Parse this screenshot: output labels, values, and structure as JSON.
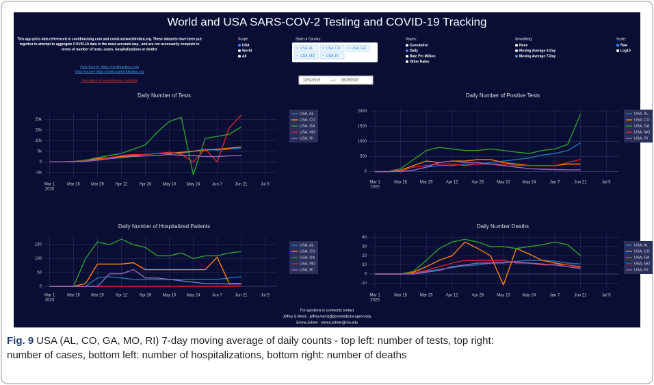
{
  "header": {
    "title": "World and USA SARS-COV-2 Testing and COVID-19 Tracking",
    "description": [
      "This app plots data referenced in covidtracking.com and covid.ourworldindata.org. These datasets have been put",
      "together to attempt to aggregate COVID-19 data in the most accurate way , and are not necessarily complete in",
      "terms of number of tests, cases, hospitalizations or deaths"
    ],
    "links": [
      "Data Source: https://covidtracking.com",
      "Data Source: https://covid.ourworldindata.org"
    ],
    "variables_link": "Description of epidemiology variables"
  },
  "controls": {
    "scope": {
      "label": "Scope:",
      "options": [
        "USA",
        "World",
        "All"
      ],
      "selected": "USA"
    },
    "state": {
      "label": "State or Country:",
      "chips": [
        "USA, AL",
        "USA, CO",
        "USA, GA",
        "USA, MO",
        "USA, RI"
      ],
      "remove": "×"
    },
    "values": {
      "label": "Values:",
      "options": [
        "Cumulative",
        "Daily",
        "Rate Per Million",
        "Other Rates"
      ],
      "selected": "Daily"
    },
    "smoothing": {
      "label": "Smoothing:",
      "options": [
        "None",
        "Moving Average 3-Day",
        "Moving Average 7-Day"
      ],
      "selected": "Moving Average 7-Day"
    },
    "scale": {
      "label": "Scale:",
      "options": [
        "Raw",
        "Log10"
      ],
      "selected": "Raw"
    },
    "date_start": "12/31/2019",
    "date_arrow": "-->",
    "date_end": "06/29/2020"
  },
  "chart_data": [
    {
      "type": "line",
      "title": "Daily Number of Tests",
      "x": [
        "2020-03-01",
        "2020-03-08",
        "2020-03-15",
        "2020-03-22",
        "2020-03-29",
        "2020-04-05",
        "2020-04-12",
        "2020-04-19",
        "2020-04-26",
        "2020-05-03",
        "2020-05-10",
        "2020-05-17",
        "2020-05-24",
        "2020-05-31",
        "2020-06-07",
        "2020-06-14",
        "2020-06-21"
      ],
      "xlim": [
        "2020-02-27",
        "2020-07-12"
      ],
      "xticks": [
        {
          "value": "2020-03-01",
          "label": "Mar 1"
        },
        {
          "value": "2020-03-15",
          "label": "Mar 15"
        },
        {
          "value": "2020-03-29",
          "label": "Mar 29"
        },
        {
          "value": "2020-04-12",
          "label": "Apr 12"
        },
        {
          "value": "2020-04-26",
          "label": "Apr 26"
        },
        {
          "value": "2020-05-10",
          "label": "May 10"
        },
        {
          "value": "2020-05-24",
          "label": "May 24"
        },
        {
          "value": "2020-06-07",
          "label": "Jun 7"
        },
        {
          "value": "2020-06-21",
          "label": "Jun 21"
        },
        {
          "value": "2020-07-05",
          "label": "Jul 5"
        }
      ],
      "year_label": "2020",
      "ylim": [
        -7000,
        23000
      ],
      "yticks": [
        {
          "value": -5000,
          "label": "−5k"
        },
        0,
        {
          "value": 5000,
          "label": "5k"
        },
        {
          "value": 10000,
          "label": "10k"
        },
        {
          "value": 15000,
          "label": "15k"
        },
        {
          "value": 20000,
          "label": "20k"
        }
      ],
      "grid": true,
      "series": [
        {
          "name": "USA, AL",
          "color": "#1f77b4",
          "values": [
            0,
            0,
            100,
            500,
            1500,
            2000,
            2500,
            3000,
            3500,
            4000,
            4500,
            4000,
            5000,
            6000,
            5500,
            6000,
            6500
          ]
        },
        {
          "name": "USA, CO",
          "color": "#ff7f0e",
          "values": [
            0,
            0,
            200,
            800,
            1500,
            2000,
            2500,
            3000,
            3500,
            4000,
            4000,
            4500,
            5000,
            5500,
            6000,
            6500,
            7000
          ]
        },
        {
          "name": "USA, GA",
          "color": "#2ca02c",
          "values": [
            0,
            0,
            200,
            800,
            2000,
            3000,
            4000,
            6000,
            8000,
            14000,
            19000,
            21000,
            -6000,
            11000,
            12000,
            13000,
            16500
          ]
        },
        {
          "name": "USA, MO",
          "color": "#d62728",
          "values": [
            0,
            0,
            100,
            500,
            1000,
            2000,
            3000,
            3500,
            3500,
            4000,
            4500,
            3500,
            0,
            6000,
            0,
            16000,
            22000
          ]
        },
        {
          "name": "USA, RI",
          "color": "#9467bd",
          "values": [
            0,
            0,
            100,
            300,
            800,
            1500,
            2000,
            2500,
            2800,
            3000,
            3500,
            3000,
            3000,
            2500,
            2500,
            2800,
            3000
          ]
        }
      ]
    },
    {
      "type": "line",
      "title": "Daily Number of Positive Tests",
      "x": [
        "2020-03-01",
        "2020-03-08",
        "2020-03-15",
        "2020-03-22",
        "2020-03-29",
        "2020-04-05",
        "2020-04-12",
        "2020-04-19",
        "2020-04-26",
        "2020-05-03",
        "2020-05-10",
        "2020-05-17",
        "2020-05-24",
        "2020-05-31",
        "2020-06-07",
        "2020-06-14",
        "2020-06-21"
      ],
      "xlim": [
        "2020-02-27",
        "2020-07-12"
      ],
      "xticks": [
        {
          "value": "2020-03-01",
          "label": "Mar 1"
        },
        {
          "value": "2020-03-15",
          "label": "Mar 15"
        },
        {
          "value": "2020-03-29",
          "label": "Mar 29"
        },
        {
          "value": "2020-04-12",
          "label": "Apr 12"
        },
        {
          "value": "2020-04-26",
          "label": "Apr 26"
        },
        {
          "value": "2020-05-10",
          "label": "May 10"
        },
        {
          "value": "2020-05-24",
          "label": "May 24"
        },
        {
          "value": "2020-06-07",
          "label": "Jun 7"
        },
        {
          "value": "2020-06-21",
          "label": "Jun 21"
        },
        {
          "value": "2020-07-05",
          "label": "Jul 5"
        }
      ],
      "year_label": "2020",
      "ylim": [
        -100,
        2050
      ],
      "yticks": [
        0,
        500,
        1000,
        1500,
        2000
      ],
      "grid": true,
      "series": [
        {
          "name": "USA, AL",
          "color": "#1f77b4",
          "values": [
            0,
            0,
            5,
            50,
            150,
            200,
            200,
            250,
            250,
            300,
            350,
            400,
            450,
            550,
            600,
            700,
            950
          ]
        },
        {
          "name": "USA, CO",
          "color": "#ff7f0e",
          "values": [
            0,
            0,
            50,
            200,
            350,
            300,
            350,
            350,
            400,
            400,
            300,
            250,
            200,
            200,
            200,
            250,
            250
          ]
        },
        {
          "name": "USA, GA",
          "color": "#2ca02c",
          "values": [
            0,
            0,
            100,
            400,
            700,
            800,
            750,
            700,
            700,
            750,
            700,
            650,
            600,
            700,
            750,
            900,
            1900
          ]
        },
        {
          "name": "USA, MO",
          "color": "#d62728",
          "values": [
            0,
            0,
            30,
            150,
            200,
            250,
            250,
            200,
            250,
            250,
            250,
            200,
            200,
            200,
            200,
            300,
            400
          ]
        },
        {
          "name": "USA, RI",
          "color": "#9467bd",
          "values": [
            0,
            0,
            10,
            50,
            150,
            300,
            350,
            300,
            300,
            250,
            200,
            150,
            100,
            80,
            70,
            60,
            60
          ]
        }
      ]
    },
    {
      "type": "line",
      "title": "Daily Number of Hospitalized Patients",
      "x": [
        "2020-03-01",
        "2020-03-08",
        "2020-03-15",
        "2020-03-22",
        "2020-03-29",
        "2020-04-05",
        "2020-04-12",
        "2020-04-19",
        "2020-04-26",
        "2020-05-03",
        "2020-05-10",
        "2020-05-17",
        "2020-05-24",
        "2020-05-31",
        "2020-06-07",
        "2020-06-14",
        "2020-06-21"
      ],
      "xlim": [
        "2020-02-27",
        "2020-07-12"
      ],
      "xticks": [
        {
          "value": "2020-03-01",
          "label": "Mar 1"
        },
        {
          "value": "2020-03-15",
          "label": "Mar 15"
        },
        {
          "value": "2020-03-29",
          "label": "Mar 29"
        },
        {
          "value": "2020-04-12",
          "label": "Apr 12"
        },
        {
          "value": "2020-04-26",
          "label": "Apr 26"
        },
        {
          "value": "2020-05-10",
          "label": "May 10"
        },
        {
          "value": "2020-05-24",
          "label": "May 24"
        },
        {
          "value": "2020-06-07",
          "label": "Jun 7"
        },
        {
          "value": "2020-06-21",
          "label": "Jun 21"
        },
        {
          "value": "2020-07-05",
          "label": "Jul 5"
        }
      ],
      "year_label": "2020",
      "ylim": [
        -5,
        180
      ],
      "yticks": [
        0,
        50,
        100,
        150
      ],
      "grid": true,
      "series": [
        {
          "name": "USA, AL",
          "color": "#1f77b4",
          "values": [
            0,
            0,
            0,
            0,
            30,
            35,
            30,
            25,
            25,
            25,
            25,
            25,
            25,
            25,
            25,
            30,
            35
          ]
        },
        {
          "name": "USA, CO",
          "color": "#ff7f0e",
          "values": [
            0,
            0,
            0,
            10,
            80,
            80,
            80,
            85,
            60,
            60,
            60,
            60,
            60,
            60,
            105,
            10,
            10
          ]
        },
        {
          "name": "USA, GA",
          "color": "#2ca02c",
          "values": [
            0,
            0,
            0,
            100,
            160,
            150,
            170,
            150,
            140,
            110,
            110,
            120,
            100,
            110,
            110,
            120,
            125
          ]
        },
        {
          "name": "USA, MO",
          "color": "#d62728",
          "values": [
            0,
            0,
            0,
            0,
            0,
            0,
            0,
            0,
            0,
            0,
            0,
            0,
            0,
            0,
            0,
            0,
            0
          ]
        },
        {
          "name": "USA, RI",
          "color": "#9467bd",
          "values": [
            0,
            0,
            0,
            0,
            0,
            45,
            45,
            60,
            30,
            30,
            25,
            20,
            15,
            10,
            10,
            8,
            8
          ]
        }
      ]
    },
    {
      "type": "line",
      "title": "Daily Number Deaths",
      "x": [
        "2020-03-01",
        "2020-03-08",
        "2020-03-15",
        "2020-03-22",
        "2020-03-29",
        "2020-04-05",
        "2020-04-12",
        "2020-04-19",
        "2020-04-26",
        "2020-05-03",
        "2020-05-10",
        "2020-05-17",
        "2020-05-24",
        "2020-05-31",
        "2020-06-07",
        "2020-06-14",
        "2020-06-21"
      ],
      "xlim": [
        "2020-02-27",
        "2020-07-12"
      ],
      "xticks": [
        {
          "value": "2020-03-01",
          "label": "Mar 1"
        },
        {
          "value": "2020-03-15",
          "label": "Mar 15"
        },
        {
          "value": "2020-03-29",
          "label": "Mar 29"
        },
        {
          "value": "2020-04-12",
          "label": "Apr 12"
        },
        {
          "value": "2020-04-26",
          "label": "Apr 26"
        },
        {
          "value": "2020-05-10",
          "label": "May 10"
        },
        {
          "value": "2020-05-24",
          "label": "May 24"
        },
        {
          "value": "2020-06-07",
          "label": "Jun 7"
        },
        {
          "value": "2020-06-21",
          "label": "Jun 21"
        },
        {
          "value": "2020-07-05",
          "label": "Jul 5"
        }
      ],
      "year_label": "2020",
      "ylim": [
        -15,
        45
      ],
      "yticks": [
        -10,
        0,
        10,
        20,
        30,
        40
      ],
      "grid": true,
      "series": [
        {
          "name": "USA, AL",
          "color": "#1f77b4",
          "values": [
            0,
            0,
            0,
            1,
            3,
            5,
            7,
            9,
            10,
            12,
            12,
            14,
            15,
            15,
            14,
            12,
            11
          ]
        },
        {
          "name": "USA, CO",
          "color": "#ff7f0e",
          "values": [
            0,
            0,
            0,
            2,
            8,
            15,
            20,
            35,
            28,
            20,
            -12,
            28,
            22,
            15,
            12,
            10,
            8
          ]
        },
        {
          "name": "USA, GA",
          "color": "#2ca02c",
          "values": [
            0,
            0,
            0,
            3,
            15,
            28,
            35,
            38,
            35,
            30,
            30,
            28,
            30,
            32,
            35,
            32,
            20
          ]
        },
        {
          "name": "USA, MO",
          "color": "#d62728",
          "values": [
            0,
            0,
            0,
            1,
            4,
            8,
            12,
            15,
            15,
            15,
            15,
            12,
            12,
            10,
            10,
            10,
            7
          ]
        },
        {
          "name": "USA, RI",
          "color": "#9467bd",
          "values": [
            0,
            0,
            0,
            0,
            2,
            4,
            8,
            10,
            12,
            12,
            13,
            13,
            12,
            11,
            10,
            8,
            6
          ]
        }
      ]
    }
  ],
  "footer": [
    "For questions or comments contact",
    "Jeffrey S Morris - jeffrey.morris@pennmedicine.upenn.edu",
    "Emma Zohner - emma.zohner@rice.edu"
  ],
  "caption": {
    "label": "Fig. 9",
    "lines": [
      "USA (AL, CO, GA, MO, RI) 7-day moving average of daily counts - top left: number of tests, top right:",
      "number of cases, bottom left: number of hospitalizations, bottom right: number of deaths"
    ]
  }
}
